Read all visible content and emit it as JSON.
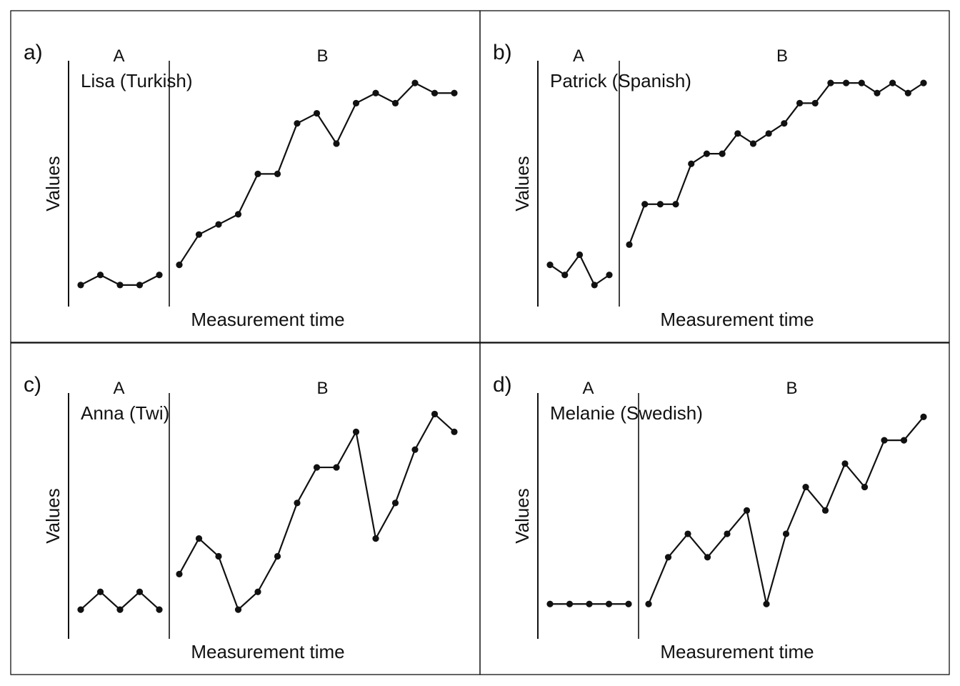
{
  "chart_data": [
    {
      "type": "line",
      "panel": "a)",
      "title": "Lisa (Turkish)",
      "xlabel": "Measurement time",
      "ylabel": "Values",
      "phases": [
        "A",
        "B"
      ],
      "baseline": [
        2,
        3,
        2,
        2,
        3
      ],
      "intervention": [
        4,
        7,
        8,
        9,
        13,
        13,
        18,
        19,
        16,
        20,
        21,
        20,
        22,
        21,
        21
      ],
      "ylim": [
        1,
        23
      ],
      "grid": false
    },
    {
      "type": "line",
      "panel": "b)",
      "title": "Patrick (Spanish)",
      "xlabel": "Measurement time",
      "ylabel": "Values",
      "phases": [
        "A",
        "B"
      ],
      "baseline": [
        4,
        3,
        5,
        2,
        3
      ],
      "intervention": [
        6,
        10,
        10,
        10,
        14,
        15,
        15,
        17,
        16,
        17,
        18,
        20,
        20,
        22,
        22,
        22,
        21,
        22,
        21,
        22
      ],
      "ylim": [
        1,
        23
      ],
      "grid": false
    },
    {
      "type": "line",
      "panel": "c)",
      "title": "Anna (Twi)",
      "xlabel": "Measurement time",
      "ylabel": "Values",
      "phases": [
        "A",
        "B"
      ],
      "baseline": [
        1,
        2,
        1,
        2,
        1
      ],
      "intervention": [
        3,
        5,
        4,
        1,
        2,
        4,
        7,
        9,
        9,
        11,
        5,
        7,
        10,
        12,
        11
      ],
      "ylim": [
        0,
        12.5
      ],
      "grid": false
    },
    {
      "type": "line",
      "panel": "d)",
      "title": "Melanie (Swedish)",
      "xlabel": "Measurement time",
      "ylabel": "Values",
      "phases": [
        "A",
        "B"
      ],
      "baseline": [
        1,
        1,
        1,
        1,
        1
      ],
      "intervention": [
        1,
        3,
        4,
        3,
        4,
        5,
        1,
        4,
        6,
        5,
        7,
        6,
        8,
        8,
        9
      ],
      "ylim": [
        0,
        9.5
      ],
      "grid": false
    }
  ]
}
